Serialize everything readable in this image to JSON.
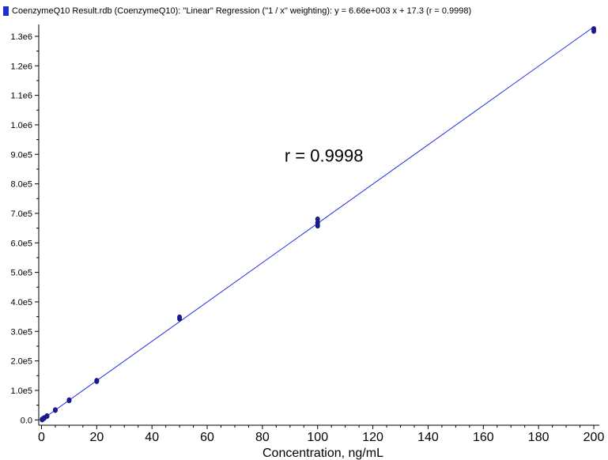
{
  "chart_data": {
    "type": "scatter",
    "legend_text": "CoenzymeQ10 Result.rdb (CoenzymeQ10): \"Linear\" Regression (\"1 / x\" weighting): y = 6.66e+003 x + 17.3 (r = 0.9998)",
    "legend_placement": "top-left",
    "annotation": "r = 0.9998",
    "xlabel": "Concentration, ng/mL",
    "ylabel": "",
    "xlim": [
      -1,
      202
    ],
    "ylim": [
      -18000,
      1340000
    ],
    "x_ticks": [
      0,
      20,
      40,
      60,
      80,
      100,
      120,
      140,
      160,
      180,
      200
    ],
    "x_tick_labels": [
      "0",
      "20",
      "40",
      "60",
      "80",
      "100",
      "120",
      "140",
      "160",
      "180",
      "200"
    ],
    "y_ticks": [
      0,
      100000,
      200000,
      300000,
      400000,
      500000,
      600000,
      700000,
      800000,
      900000,
      1000000,
      1100000,
      1200000,
      1300000
    ],
    "y_tick_labels": [
      "0.0",
      "1.0e5",
      "2.0e5",
      "3.0e5",
      "4.0e5",
      "5.0e5",
      "6.0e5",
      "7.0e5",
      "8.0e5",
      "9.0e5",
      "1.0e6",
      "1.1e6",
      "1.2e6",
      "1.3e6"
    ],
    "grid": false,
    "regression": {
      "slope": 6660,
      "intercept": 17.3,
      "x_range": [
        0,
        200
      ]
    },
    "series": [
      {
        "points": [
          {
            "x": 0.2,
            "y": 1400
          },
          {
            "x": 0.2,
            "y": 1200
          },
          {
            "x": 0.5,
            "y": 3300
          },
          {
            "x": 0.5,
            "y": 3500
          },
          {
            "x": 1,
            "y": 6700
          },
          {
            "x": 1,
            "y": 6500
          },
          {
            "x": 2,
            "y": 13300
          },
          {
            "x": 2,
            "y": 13000
          },
          {
            "x": 5,
            "y": 33500
          },
          {
            "x": 5,
            "y": 33000
          },
          {
            "x": 10,
            "y": 66000
          },
          {
            "x": 10,
            "y": 67000
          },
          {
            "x": 20,
            "y": 133000
          },
          {
            "x": 20,
            "y": 131000
          },
          {
            "x": 50,
            "y": 343000
          },
          {
            "x": 50,
            "y": 348000
          },
          {
            "x": 100,
            "y": 658000
          },
          {
            "x": 100,
            "y": 668000
          },
          {
            "x": 100,
            "y": 680000
          },
          {
            "x": 200,
            "y": 1318000
          },
          {
            "x": 200,
            "y": 1325000
          }
        ]
      }
    ],
    "colors": {
      "series": "#1a1a8c",
      "line": "#1c2ee0",
      "legend_swatch": "#1f2fd6",
      "axis": "#000000"
    }
  }
}
